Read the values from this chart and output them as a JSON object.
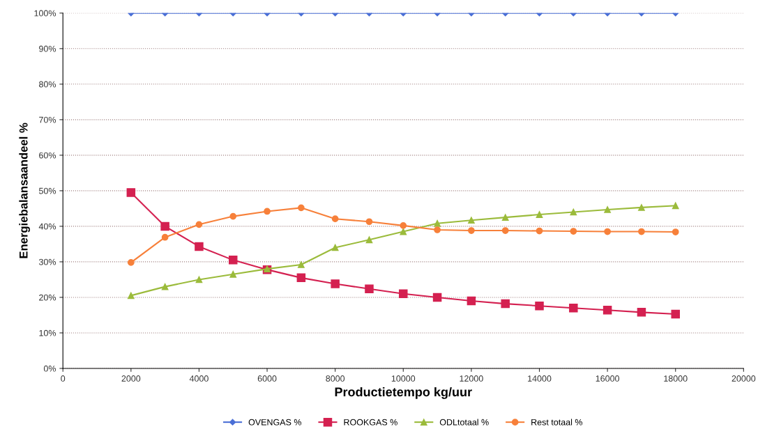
{
  "chart_data": {
    "type": "line",
    "xlabel": "Productietempo kg/uur",
    "ylabel": "Energiebalansaandeel %",
    "x": [
      2000,
      3000,
      4000,
      5000,
      6000,
      7000,
      8000,
      9000,
      10000,
      11000,
      12000,
      13000,
      14000,
      15000,
      16000,
      17000,
      18000
    ],
    "series": [
      {
        "name": "OVENGAS %",
        "color": "#4a6fd6",
        "marker": "diamond",
        "values": [
          100,
          100,
          100,
          100,
          100,
          100,
          100,
          100,
          100,
          100,
          100,
          100,
          100,
          100,
          100,
          100,
          100
        ]
      },
      {
        "name": "ROOKGAS %",
        "color": "#d42050",
        "marker": "square",
        "values": [
          49.5,
          40,
          34.3,
          30.5,
          27.8,
          25.5,
          23.8,
          22.4,
          21,
          20,
          19,
          18.2,
          17.6,
          17,
          16.4,
          15.8,
          15.3
        ]
      },
      {
        "name": "ODLtotaal %",
        "color": "#9bbb3b",
        "marker": "triangle",
        "values": [
          20.5,
          23,
          25,
          26.5,
          28,
          29.2,
          34,
          36.2,
          38.5,
          40.8,
          41.7,
          42.5,
          43.3,
          44,
          44.7,
          45.3,
          45.8
        ]
      },
      {
        "name": "Rest totaal %",
        "color": "#f7803a",
        "marker": "circle",
        "values": [
          29.8,
          36.9,
          40.5,
          42.8,
          44.2,
          45.2,
          42.1,
          41.3,
          40.2,
          39,
          38.8,
          38.8,
          38.7,
          38.6,
          38.5,
          38.5,
          38.4
        ]
      }
    ],
    "xlim": [
      0,
      20000
    ],
    "xticks": [
      0,
      2000,
      4000,
      6000,
      8000,
      10000,
      12000,
      14000,
      16000,
      18000,
      20000
    ],
    "ylim": [
      0,
      100
    ],
    "yticks": [
      {
        "value": 0,
        "label": "0%"
      },
      {
        "value": 10,
        "label": "10%"
      },
      {
        "value": 20,
        "label": "20%"
      },
      {
        "value": 30,
        "label": "30%"
      },
      {
        "value": 40,
        "label": "40%"
      },
      {
        "value": 50,
        "label": "50%"
      },
      {
        "value": 60,
        "label": "60%"
      },
      {
        "value": 70,
        "label": "70%"
      },
      {
        "value": 80,
        "label": "80%"
      },
      {
        "value": 90,
        "label": "90%"
      },
      {
        "value": 100,
        "label": "100%"
      }
    ],
    "grid": "y",
    "legend": "bottom",
    "line_style": "solid"
  }
}
